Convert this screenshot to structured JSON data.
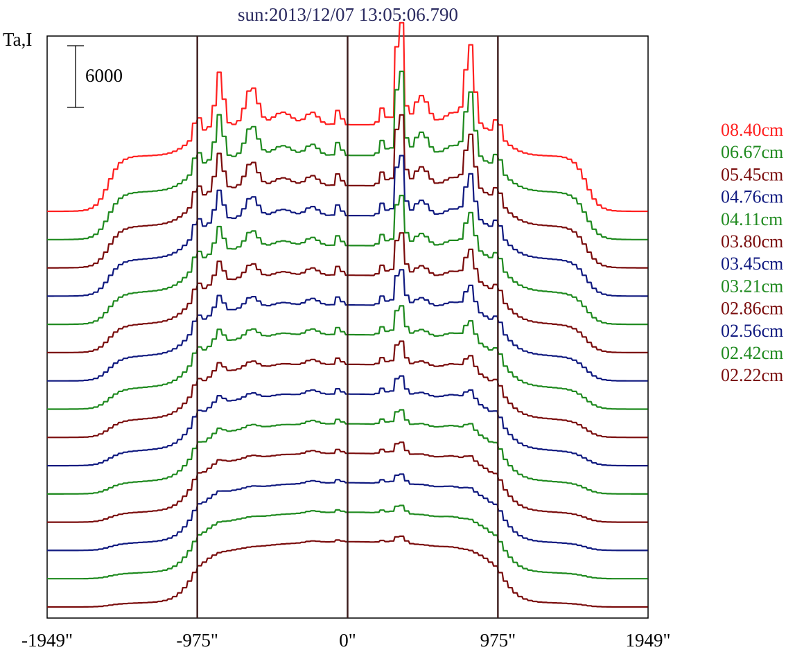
{
  "chart_data": {
    "type": "line",
    "title": "sun:2013/12/07 13:05:06.790",
    "ylabel": "Ta,I",
    "scale_bar": {
      "label": "6000",
      "value": 6000
    },
    "xlim": [
      -1949,
      1949
    ],
    "x_ticks": [
      {
        "value": -1949,
        "label": "-1949\""
      },
      {
        "value": -975,
        "label": "-975\""
      },
      {
        "value": 0,
        "label": "0\""
      },
      {
        "value": 975,
        "label": "975\""
      },
      {
        "value": 1949,
        "label": "1949\""
      }
    ],
    "reference_lines": [
      -975,
      0,
      975
    ],
    "legend_position": "right",
    "colors": {
      "red": "#ff2020",
      "green": "#1f8a1f",
      "darkred": "#7a0c0c",
      "navy": "#101a80",
      "axis": "#000000",
      "reference": "#3a1a1a",
      "title": "#2a2a60"
    },
    "series": [
      {
        "name": "08.40cm",
        "color": "#ff2020",
        "amp": 1.0
      },
      {
        "name": "06.67cm",
        "color": "#1f8a1f",
        "amp": 0.9
      },
      {
        "name": "05.45cm",
        "color": "#7a0c0c",
        "amp": 0.82
      },
      {
        "name": "04.76cm",
        "color": "#101a80",
        "amp": 0.75
      },
      {
        "name": "04.11cm",
        "color": "#1f8a1f",
        "amp": 0.68
      },
      {
        "name": "03.80cm",
        "color": "#7a0c0c",
        "amp": 0.62
      },
      {
        "name": "03.45cm",
        "color": "#101a80",
        "amp": 0.56
      },
      {
        "name": "03.21cm",
        "color": "#1f8a1f",
        "amp": 0.5
      },
      {
        "name": "02.86cm",
        "color": "#7a0c0c",
        "amp": 0.44
      },
      {
        "name": "02.56cm",
        "color": "#101a80",
        "amp": 0.38
      },
      {
        "name": "02.42cm",
        "color": "#1f8a1f",
        "amp": 0.32
      },
      {
        "name": "02.22cm",
        "color": "#7a0c0c",
        "amp": 0.27
      },
      {
        "color": "#101a80",
        "amp": 0.22
      },
      {
        "color": "#1f8a1f",
        "amp": 0.17
      },
      {
        "color": "#7a0c0c",
        "amp": 0.12
      }
    ]
  }
}
